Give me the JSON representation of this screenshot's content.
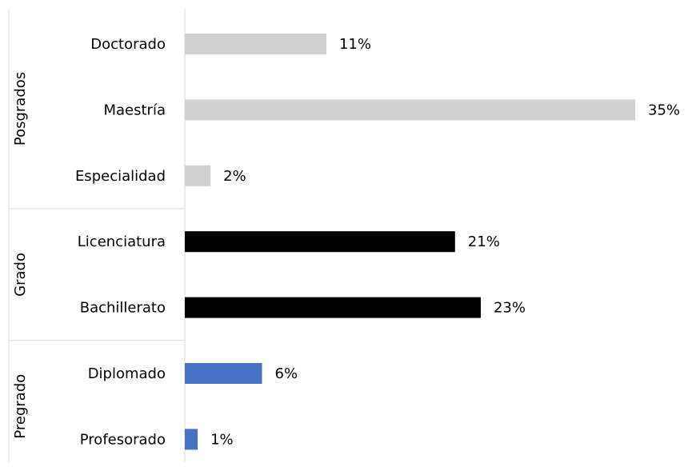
{
  "chart_data": {
    "type": "bar",
    "orientation": "horizontal",
    "grid": false,
    "xlim": [
      0,
      35
    ],
    "groups": [
      {
        "name": "Posgrados",
        "color": "#d0d0d0",
        "categories": [
          "Doctorado",
          "Maestría",
          "Especialidad"
        ],
        "values": [
          11,
          35,
          2
        ],
        "labels": [
          "11%",
          "35%",
          "2%"
        ]
      },
      {
        "name": "Grado",
        "color": "#000000",
        "categories": [
          "Licenciatura",
          "Bachillerato"
        ],
        "values": [
          21,
          23
        ],
        "labels": [
          "21%",
          "23%"
        ]
      },
      {
        "name": "Pregrado",
        "color": "#4472c4",
        "categories": [
          "Diplomado",
          "Profesorado"
        ],
        "values": [
          6,
          1
        ],
        "labels": [
          "6%",
          "1%"
        ]
      }
    ]
  }
}
